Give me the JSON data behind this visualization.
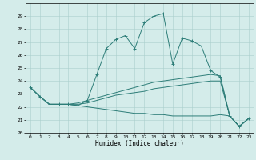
{
  "xlabel": "Humidex (Indice chaleur)",
  "x": [
    0,
    1,
    2,
    3,
    4,
    5,
    6,
    7,
    8,
    9,
    10,
    11,
    12,
    13,
    14,
    15,
    16,
    17,
    18,
    19,
    20,
    21,
    22,
    23
  ],
  "line1": [
    23.5,
    22.8,
    22.2,
    22.2,
    22.2,
    22.1,
    22.5,
    24.5,
    26.5,
    27.2,
    27.5,
    26.5,
    28.5,
    29.0,
    29.2,
    25.3,
    27.3,
    27.1,
    26.7,
    24.8,
    24.3,
    21.3,
    20.5,
    21.1
  ],
  "line2": [
    23.5,
    22.8,
    22.2,
    22.2,
    22.2,
    22.3,
    22.5,
    22.7,
    22.9,
    23.1,
    23.3,
    23.5,
    23.7,
    23.9,
    24.0,
    24.1,
    24.2,
    24.3,
    24.4,
    24.5,
    24.4,
    21.3,
    20.5,
    21.1
  ],
  "line3": [
    23.5,
    22.8,
    22.2,
    22.2,
    22.2,
    22.2,
    22.3,
    22.5,
    22.7,
    22.9,
    23.0,
    23.1,
    23.2,
    23.4,
    23.5,
    23.6,
    23.7,
    23.8,
    23.9,
    24.0,
    24.0,
    21.3,
    20.5,
    21.1
  ],
  "line4": [
    23.5,
    22.8,
    22.2,
    22.2,
    22.2,
    22.1,
    22.0,
    21.9,
    21.8,
    21.7,
    21.6,
    21.5,
    21.5,
    21.4,
    21.4,
    21.3,
    21.3,
    21.3,
    21.3,
    21.3,
    21.4,
    21.3,
    20.5,
    21.1
  ],
  "line_color": "#2d7d78",
  "bg_color": "#d4ecea",
  "grid_color": "#aacfcc",
  "ylim": [
    20,
    30
  ],
  "xlim": [
    -0.5,
    23.5
  ],
  "yticks": [
    20,
    21,
    22,
    23,
    24,
    25,
    26,
    27,
    28,
    29
  ],
  "xticks": [
    0,
    1,
    2,
    3,
    4,
    5,
    6,
    7,
    8,
    9,
    10,
    11,
    12,
    13,
    14,
    15,
    16,
    17,
    18,
    19,
    20,
    21,
    22,
    23
  ]
}
